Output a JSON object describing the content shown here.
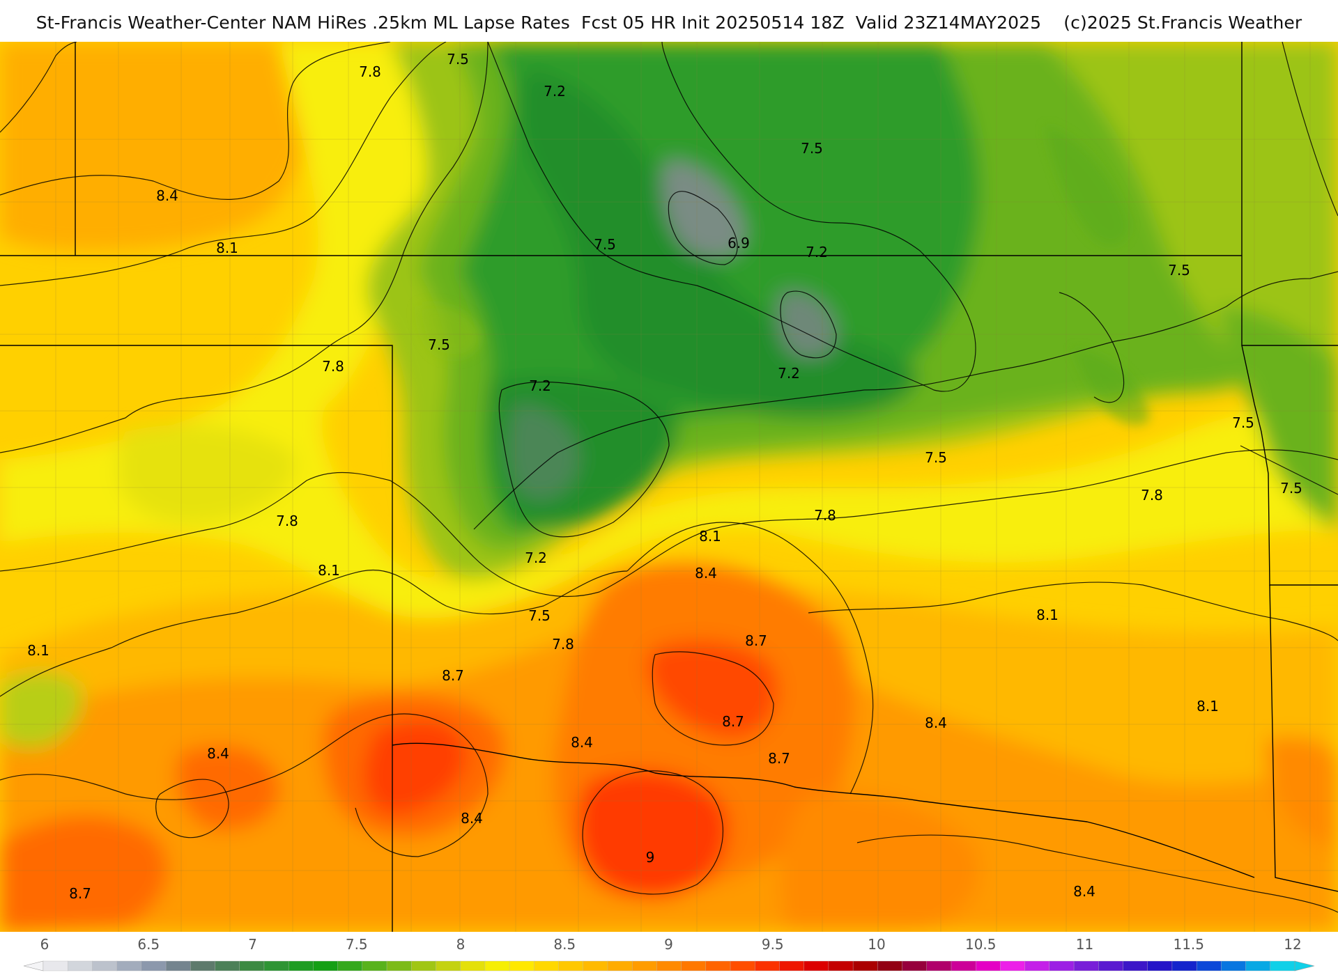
{
  "header": {
    "title": "St-Francis Weather-Center NAM HiRes .25km ML Lapse Rates  Fcst 05 HR Init 20250514 18Z  Valid 23Z14MAY2025    (c)2025 St.Francis Weather"
  },
  "map": {
    "contour_labels": [
      {
        "text": "7.5"
      },
      {
        "text": "7.8"
      },
      {
        "text": "7.2"
      },
      {
        "text": "7.5"
      },
      {
        "text": "8.4"
      },
      {
        "text": "8.1"
      },
      {
        "text": "7.5"
      },
      {
        "text": "6.9"
      },
      {
        "text": "7.2"
      },
      {
        "text": "7.5"
      },
      {
        "text": "7.5"
      },
      {
        "text": "7.8"
      },
      {
        "text": "7.2"
      },
      {
        "text": "7.2"
      },
      {
        "text": "7.5"
      },
      {
        "text": "7.5"
      },
      {
        "text": "7.5"
      },
      {
        "text": "7.8"
      },
      {
        "text": "7.8"
      },
      {
        "text": "7.8"
      },
      {
        "text": "8.1"
      },
      {
        "text": "8.1"
      },
      {
        "text": "7.2"
      },
      {
        "text": "8.4"
      },
      {
        "text": "7.5"
      },
      {
        "text": "8.1"
      },
      {
        "text": "7.8"
      },
      {
        "text": "8.7"
      },
      {
        "text": "8.1"
      },
      {
        "text": "8.7"
      },
      {
        "text": "8.7"
      },
      {
        "text": "8.1"
      },
      {
        "text": "8.4"
      },
      {
        "text": "8.7"
      },
      {
        "text": "8.4"
      },
      {
        "text": "8.4"
      },
      {
        "text": "9"
      },
      {
        "text": "8.4"
      },
      {
        "text": "8.7"
      },
      {
        "text": "8.4"
      }
    ]
  },
  "colorbar": {
    "tick_labels": [
      "6",
      "6.5",
      "7",
      "7.5",
      "8",
      "8.5",
      "9",
      "9.5",
      "10",
      "10.5",
      "11",
      "11.5",
      "12"
    ],
    "colors": [
      "#e8e8ec",
      "#d2d6dc",
      "#bcc2cc",
      "#a2acbc",
      "#8c98ac",
      "#74848e",
      "#5e7a6c",
      "#4c8058",
      "#3c8a42",
      "#2e9434",
      "#1e9c22",
      "#159f15",
      "#34a81c",
      "#58b21c",
      "#7cbb18",
      "#a0c614",
      "#c4d210",
      "#e4e00a",
      "#f6ee04",
      "#ffe800",
      "#ffd800",
      "#ffc800",
      "#ffba00",
      "#ffac00",
      "#ff9c00",
      "#ff8a00",
      "#ff7800",
      "#ff6400",
      "#ff4e00",
      "#fb3200",
      "#ee1600",
      "#dc0000",
      "#c40000",
      "#aa0000",
      "#920012",
      "#96003c",
      "#b0006a",
      "#cc0098",
      "#e400c4",
      "#ec20e8",
      "#c420e8",
      "#9c20e4",
      "#781ed8",
      "#5a1ad0",
      "#3c16c8",
      "#2414c8",
      "#1424cc",
      "#0c48d8",
      "#0876e0",
      "#08a8e4",
      "#10d0e8"
    ]
  }
}
